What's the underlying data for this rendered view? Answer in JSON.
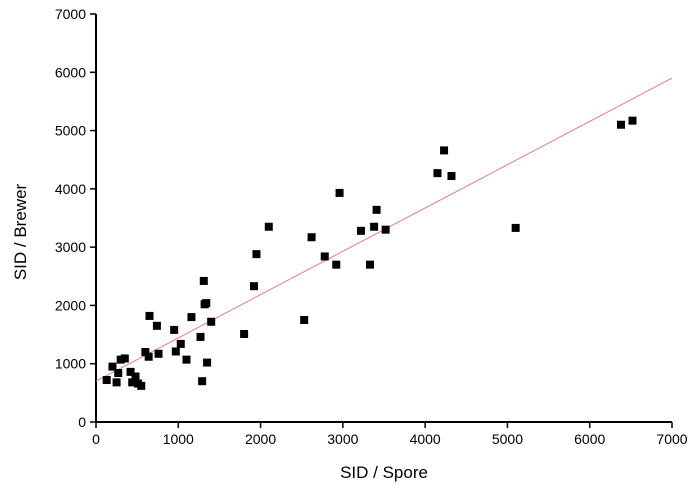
{
  "chart_data": {
    "type": "scatter",
    "title": "",
    "xlabel": "SID / Spore",
    "ylabel": "SID / Brewer",
    "xlim": [
      0,
      7000
    ],
    "ylim": [
      0,
      7000
    ],
    "xticks": [
      0,
      1000,
      2000,
      3000,
      4000,
      5000,
      6000,
      7000
    ],
    "yticks": [
      0,
      1000,
      2000,
      3000,
      4000,
      5000,
      6000,
      7000
    ],
    "grid": false,
    "legend": "none",
    "marker_color": "#000000",
    "fit_line": {
      "x": [
        0,
        7000
      ],
      "y": [
        700,
        5900
      ],
      "color": "#e08080"
    },
    "series": [
      {
        "points": [
          [
            130,
            720
          ],
          [
            200,
            950
          ],
          [
            250,
            680
          ],
          [
            270,
            840
          ],
          [
            300,
            1070
          ],
          [
            350,
            1090
          ],
          [
            420,
            860
          ],
          [
            440,
            680
          ],
          [
            480,
            780
          ],
          [
            510,
            660
          ],
          [
            550,
            620
          ],
          [
            600,
            1200
          ],
          [
            640,
            1120
          ],
          [
            650,
            1820
          ],
          [
            740,
            1650
          ],
          [
            760,
            1170
          ],
          [
            950,
            1580
          ],
          [
            970,
            1210
          ],
          [
            1030,
            1340
          ],
          [
            1100,
            1070
          ],
          [
            1160,
            1800
          ],
          [
            1270,
            1460
          ],
          [
            1290,
            700
          ],
          [
            1310,
            2420
          ],
          [
            1320,
            2020
          ],
          [
            1340,
            2040
          ],
          [
            1350,
            1020
          ],
          [
            1400,
            1720
          ],
          [
            1800,
            1510
          ],
          [
            1920,
            2330
          ],
          [
            1950,
            2880
          ],
          [
            2100,
            3350
          ],
          [
            2530,
            1750
          ],
          [
            2620,
            3170
          ],
          [
            2780,
            2840
          ],
          [
            2920,
            2700
          ],
          [
            2960,
            3930
          ],
          [
            3220,
            3280
          ],
          [
            3330,
            2700
          ],
          [
            3380,
            3350
          ],
          [
            3410,
            3640
          ],
          [
            3520,
            3300
          ],
          [
            4150,
            4270
          ],
          [
            4230,
            4660
          ],
          [
            4320,
            4220
          ],
          [
            5100,
            3330
          ],
          [
            6380,
            5100
          ],
          [
            6520,
            5170
          ]
        ]
      }
    ]
  }
}
